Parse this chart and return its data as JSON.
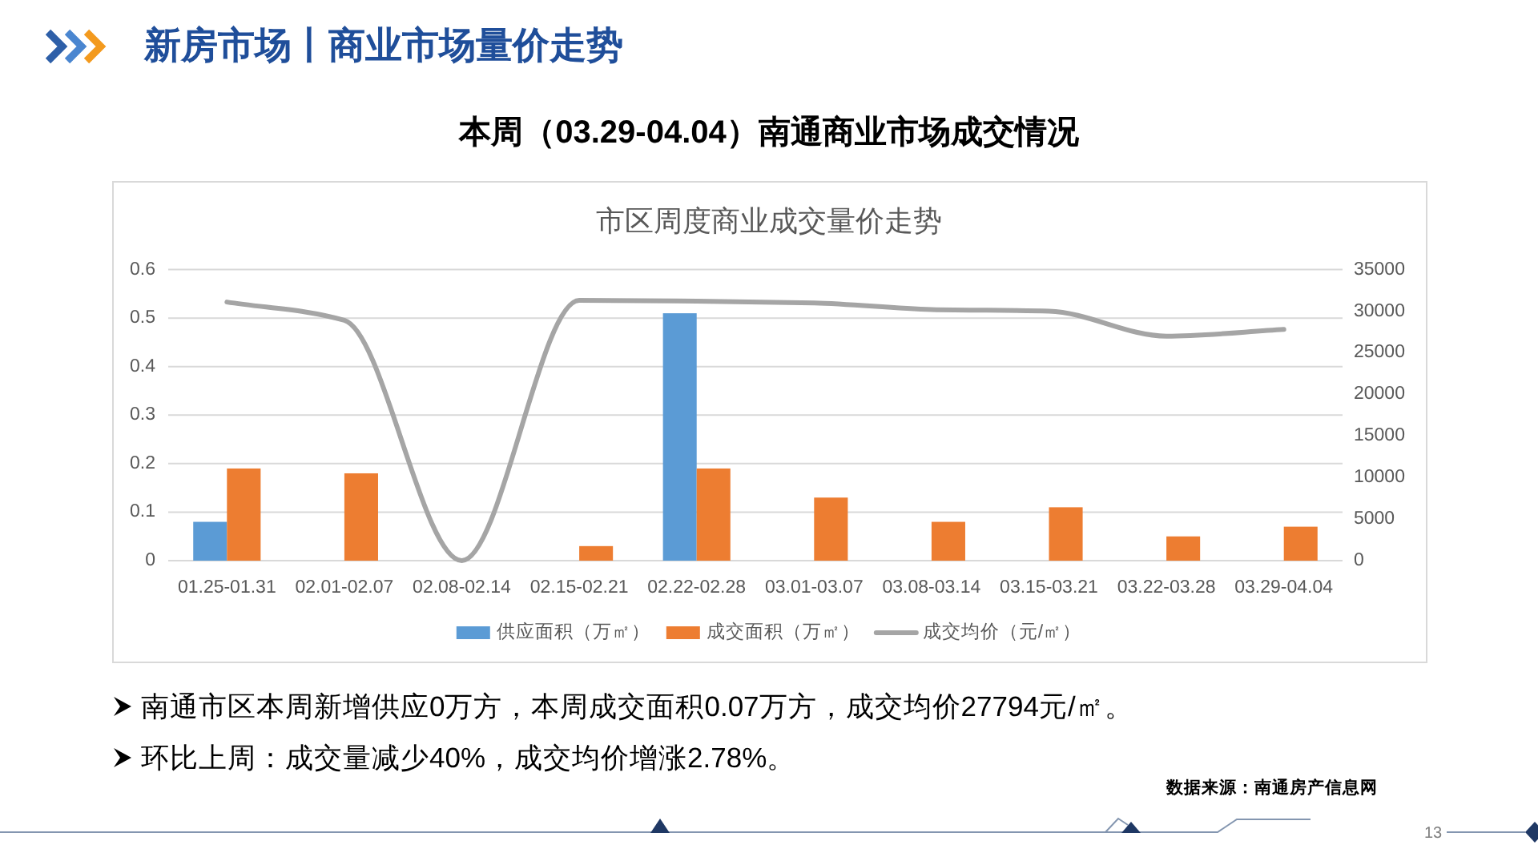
{
  "chart_data": {
    "type": "bar",
    "title": "市区周度商业成交量价走势",
    "subtitle": "本周（03.29-04.04）南通商业市场成交情况",
    "annotations": [
      "新房市场丨商业市场量价走势",
      "南通市区本周新增供应0万方，本周成交面积0.07万方，成交均价27794元/㎡。",
      "环比上周：成交量减少40%，成交均价增涨2.78%。",
      "数据来源：南通房产信息网",
      "13"
    ],
    "categories": [
      "01.25-01.31",
      "02.01-02.07",
      "02.08-02.14",
      "02.15-02.21",
      "02.22-02.28",
      "03.01-03.07",
      "03.08-03.14",
      "03.15-03.21",
      "03.22-03.28",
      "03.29-04.04"
    ],
    "series": [
      {
        "name": "供应面积（万㎡）",
        "color": "#5b9bd5",
        "values": [
          0.08,
          0,
          0,
          0,
          0.51,
          0,
          0,
          0,
          0,
          0
        ]
      },
      {
        "name": "成交面积（万㎡）",
        "color": "#ed7d31",
        "values": [
          0.19,
          0.18,
          0,
          0.03,
          0.19,
          0.13,
          0.08,
          0.11,
          0.05,
          0.07
        ]
      },
      {
        "name": "成交均价（元/㎡）",
        "type": "line",
        "axis": "y2",
        "color": "#a5a5a5",
        "values": [
          31100,
          28900,
          0,
          31300,
          31200,
          31000,
          30200,
          30000,
          27000,
          27800
        ]
      }
    ],
    "ylim": [
      0,
      0.6
    ],
    "yticks": [
      0,
      0.1,
      0.2,
      0.3,
      0.4,
      0.5,
      0.6
    ],
    "y2lim": [
      0,
      35000
    ],
    "y2ticks": [
      0,
      5000,
      10000,
      15000,
      20000,
      25000,
      30000,
      35000
    ],
    "grid": "y",
    "legend": "bottom"
  }
}
